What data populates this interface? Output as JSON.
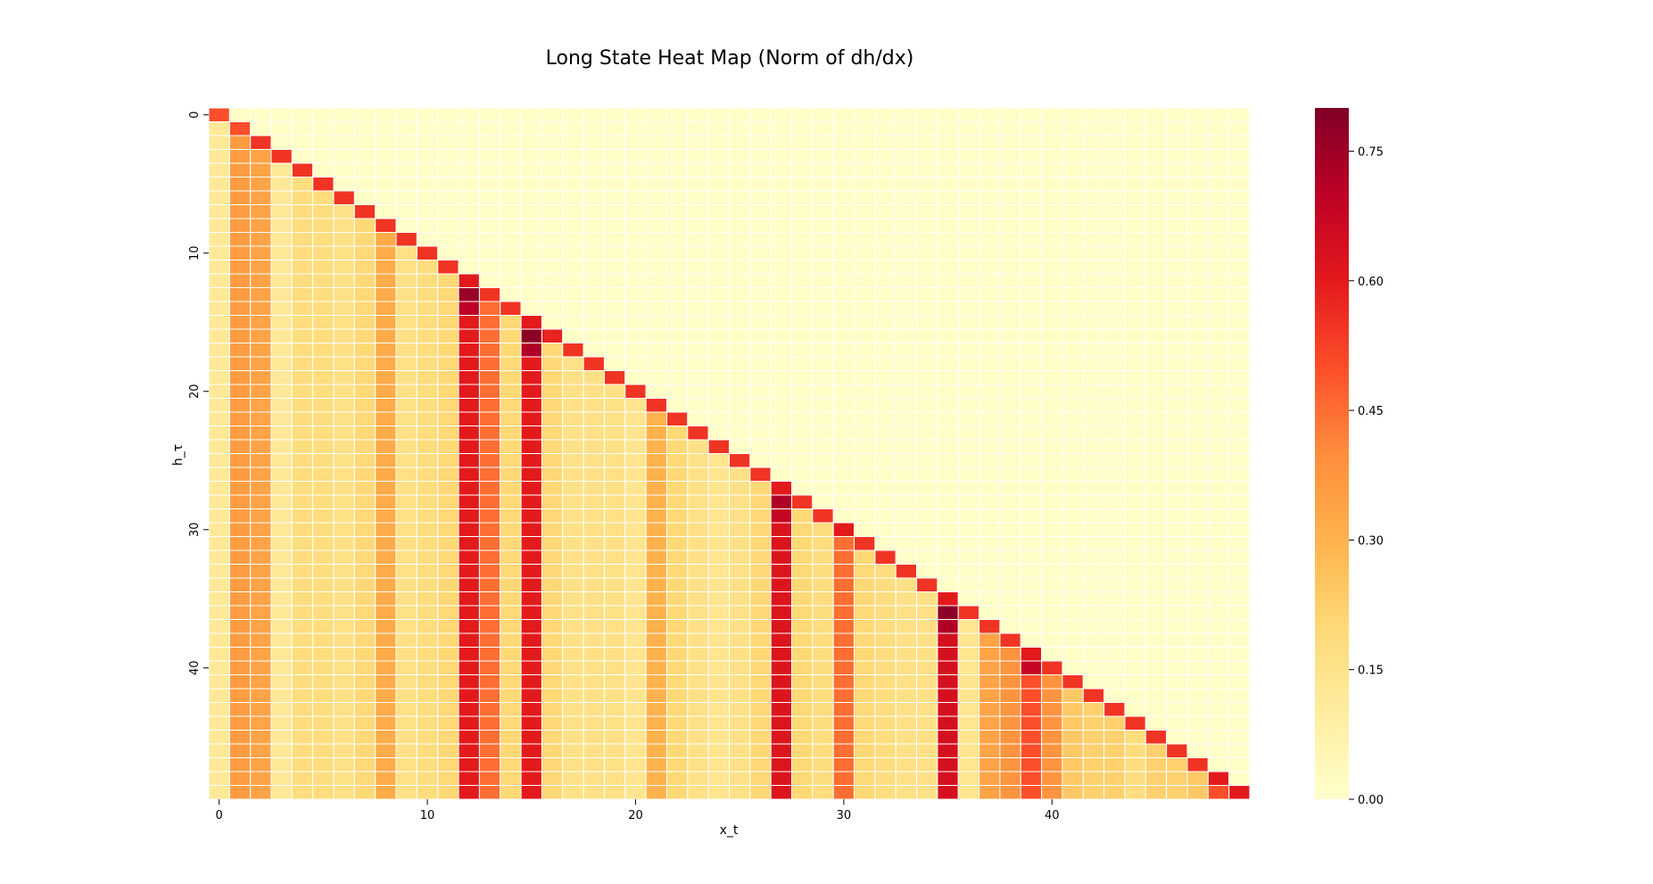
{
  "chart_data": {
    "type": "heatmap",
    "title": "Long State Heat Map (Norm of dh/dx)",
    "xlabel": "x_t",
    "ylabel": "h_τ",
    "rows": 50,
    "cols": 50,
    "x_ticks": [
      0,
      10,
      20,
      30,
      40
    ],
    "y_ticks": [
      0,
      10,
      20,
      30,
      40
    ],
    "colormap": "YlOrRd",
    "colorbar": {
      "min": 0.0,
      "max": 0.8,
      "ticks": [
        0.0,
        0.15,
        0.3,
        0.45,
        0.6,
        0.75
      ],
      "tick_labels": [
        "0.00",
        "0.15",
        "0.30",
        "0.45",
        "0.60",
        "0.75"
      ]
    },
    "grid_lines": "white",
    "pattern": "lower-triangular (x_t <= h_τ); upper triangle ≈ 0",
    "diagonal_values": [
      0.5,
      0.5,
      0.55,
      0.55,
      0.55,
      0.55,
      0.55,
      0.55,
      0.55,
      0.55,
      0.55,
      0.55,
      0.6,
      0.55,
      0.55,
      0.6,
      0.58,
      0.55,
      0.55,
      0.55,
      0.55,
      0.55,
      0.55,
      0.55,
      0.55,
      0.55,
      0.55,
      0.6,
      0.55,
      0.55,
      0.6,
      0.55,
      0.55,
      0.55,
      0.55,
      0.6,
      0.55,
      0.55,
      0.55,
      0.6,
      0.55,
      0.55,
      0.55,
      0.55,
      0.55,
      0.55,
      0.55,
      0.55,
      0.6,
      0.6
    ],
    "column_values_below_diagonal": [
      0.12,
      0.36,
      0.34,
      0.12,
      0.18,
      0.18,
      0.16,
      0.2,
      0.32,
      0.16,
      0.18,
      0.2,
      0.6,
      0.45,
      0.2,
      0.6,
      0.2,
      0.16,
      0.16,
      0.16,
      0.14,
      0.3,
      0.2,
      0.16,
      0.14,
      0.16,
      0.2,
      0.62,
      0.2,
      0.18,
      0.45,
      0.2,
      0.18,
      0.16,
      0.16,
      0.64,
      0.14,
      0.34,
      0.38,
      0.5,
      0.38,
      0.24,
      0.22,
      0.22,
      0.18,
      0.22,
      0.22,
      0.24,
      0.5,
      0.55
    ],
    "near_diagonal_peaks": [
      {
        "row": 13,
        "col": 12,
        "value": 0.76
      },
      {
        "row": 14,
        "col": 12,
        "value": 0.7
      },
      {
        "row": 16,
        "col": 15,
        "value": 0.78
      },
      {
        "row": 17,
        "col": 15,
        "value": 0.72
      },
      {
        "row": 28,
        "col": 27,
        "value": 0.72
      },
      {
        "row": 29,
        "col": 27,
        "value": 0.68
      },
      {
        "row": 36,
        "col": 35,
        "value": 0.78
      },
      {
        "row": 37,
        "col": 35,
        "value": 0.72
      },
      {
        "row": 40,
        "col": 39,
        "value": 0.68
      }
    ]
  }
}
